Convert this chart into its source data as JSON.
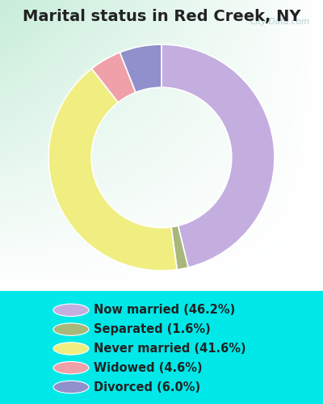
{
  "title": "Marital status in Red Creek, NY",
  "slices": [
    46.2,
    1.6,
    41.6,
    4.6,
    6.0
  ],
  "labels": [
    "Now married (46.2%)",
    "Separated (1.6%)",
    "Never married (41.6%)",
    "Widowed (4.6%)",
    "Divorced (6.0%)"
  ],
  "pie_colors": [
    "#c4aee0",
    "#a8b87a",
    "#f0ee80",
    "#f0a0a8",
    "#9090cc"
  ],
  "legend_colors": [
    "#c4aee0",
    "#a8b87a",
    "#f0ee80",
    "#f0a0a8",
    "#9090cc"
  ],
  "bg_outer": "#00e8e8",
  "bg_chart_tl": "#c8e8d8",
  "bg_chart_tr": "#e8f0f0",
  "bg_chart_br": "#ffffff",
  "watermark": "City-Data.com",
  "title_fontsize": 14,
  "legend_fontsize": 10.5,
  "start_angle": 90,
  "donut_width": 0.38
}
